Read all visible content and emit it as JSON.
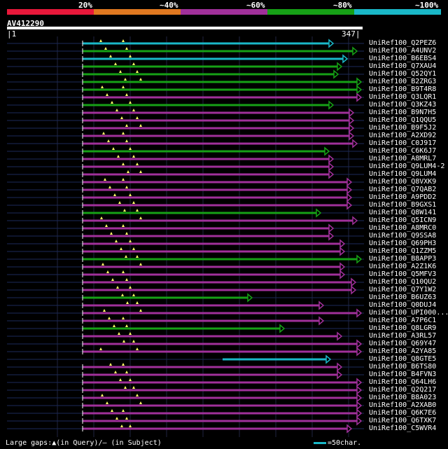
{
  "legend": {
    "colors": [
      "#e8183a",
      "#e07820",
      "#a0309a",
      "#16a016",
      "#1ab8c8"
    ],
    "labels": [
      "20%",
      "~40%",
      "~60%",
      "~80%",
      "~100%"
    ]
  },
  "query": {
    "label": "AV412290",
    "start": "1",
    "end": "347"
  },
  "colors": {
    "magenta": "#a0309a",
    "green": "#16a016",
    "cyan": "#1ab8c8",
    "navy": "#1b2a5a",
    "gap": "#ffff66"
  },
  "hits": [
    {
      "name": "UniRef100_Q2PEZ6",
      "color": "cyan"
    },
    {
      "name": "UniRef100_A4UNV2",
      "color": "green"
    },
    {
      "name": "UniRef100_B6EBS4",
      "color": "cyan"
    },
    {
      "name": "UniRef100_Q7XAU4",
      "color": "green"
    },
    {
      "name": "UniRef100_Q52QY1",
      "color": "green"
    },
    {
      "name": "UniRef100_B2ZRG3",
      "color": "green"
    },
    {
      "name": "UniRef100_B9T4R8",
      "color": "green"
    },
    {
      "name": "UniRef100_Q3LQR1",
      "color": "magenta"
    },
    {
      "name": "UniRef100_Q3KZ43",
      "color": "green"
    },
    {
      "name": "UniRef100_B9N7H5",
      "color": "magenta"
    },
    {
      "name": "UniRef100_Q1QQU5",
      "color": "magenta"
    },
    {
      "name": "UniRef100_B9F5J2",
      "color": "magenta"
    },
    {
      "name": "UniRef100_A2XD92",
      "color": "magenta"
    },
    {
      "name": "UniRef100_C0J917",
      "color": "magenta"
    },
    {
      "name": "UniRef100_C6K6J7",
      "color": "green"
    },
    {
      "name": "UniRef100_A8MRL7",
      "color": "magenta"
    },
    {
      "name": "UniRef100_Q9LUM4-2",
      "color": "magenta"
    },
    {
      "name": "UniRef100_Q9LUM4",
      "color": "magenta"
    },
    {
      "name": "UniRef100_Q8VXK9",
      "color": "magenta"
    },
    {
      "name": "UniRef100_Q7QAB2",
      "color": "magenta"
    },
    {
      "name": "UniRef100_A9PDD2",
      "color": "magenta"
    },
    {
      "name": "UniRef100_B9GXS1",
      "color": "magenta"
    },
    {
      "name": "UniRef100_Q8W141",
      "color": "green"
    },
    {
      "name": "UniRef100_Q5ICN9",
      "color": "magenta"
    },
    {
      "name": "UniRef100_A8MRC0",
      "color": "magenta"
    },
    {
      "name": "UniRef100_Q9SSA8",
      "color": "magenta"
    },
    {
      "name": "UniRef100_Q69PH3",
      "color": "magenta"
    },
    {
      "name": "UniRef100_Q1ZZM5",
      "color": "magenta"
    },
    {
      "name": "UniRef100_B8APP3",
      "color": "green"
    },
    {
      "name": "UniRef100_A2Z1K6",
      "color": "magenta"
    },
    {
      "name": "UniRef100_Q5MFV3",
      "color": "magenta"
    },
    {
      "name": "UniRef100_Q10QU2",
      "color": "magenta"
    },
    {
      "name": "UniRef100_Q7Y1W2",
      "color": "magenta"
    },
    {
      "name": "UniRef100_B6UZ63",
      "color": "green"
    },
    {
      "name": "UniRef100_Q0DUJ4",
      "color": "magenta"
    },
    {
      "name": "UniRef100_UPI000...",
      "color": "magenta"
    },
    {
      "name": "UniRef100_A7P6C1",
      "color": "magenta"
    },
    {
      "name": "UniRef100_Q8LGR9",
      "color": "green"
    },
    {
      "name": "UniRef100_A3RL57",
      "color": "magenta"
    },
    {
      "name": "UniRef100_Q69Y47",
      "color": "magenta"
    },
    {
      "name": "UniRef100_A2YA85",
      "color": "magenta"
    },
    {
      "name": "UniRef100_Q8GTE5",
      "color": "cyan"
    },
    {
      "name": "UniRef100_B6TS80",
      "color": "magenta"
    },
    {
      "name": "UniRef100_B4FVN3",
      "color": "magenta"
    },
    {
      "name": "UniRef100_Q64LH6",
      "color": "magenta"
    },
    {
      "name": "UniRef100_Q2Q217",
      "color": "magenta"
    },
    {
      "name": "UniRef100_B8A023",
      "color": "magenta"
    },
    {
      "name": "UniRef100_A2XAB0",
      "color": "magenta"
    },
    {
      "name": "UniRef100_Q6K7E6",
      "color": "magenta"
    },
    {
      "name": "UniRef100_Q6TXK7",
      "color": "magenta"
    },
    {
      "name": "UniRef100_C5WVR4",
      "color": "magenta"
    }
  ],
  "footer": {
    "gaps_text": "Large gaps:▲(in Query)/– (in Subject)",
    "scale_text": "=50char."
  }
}
